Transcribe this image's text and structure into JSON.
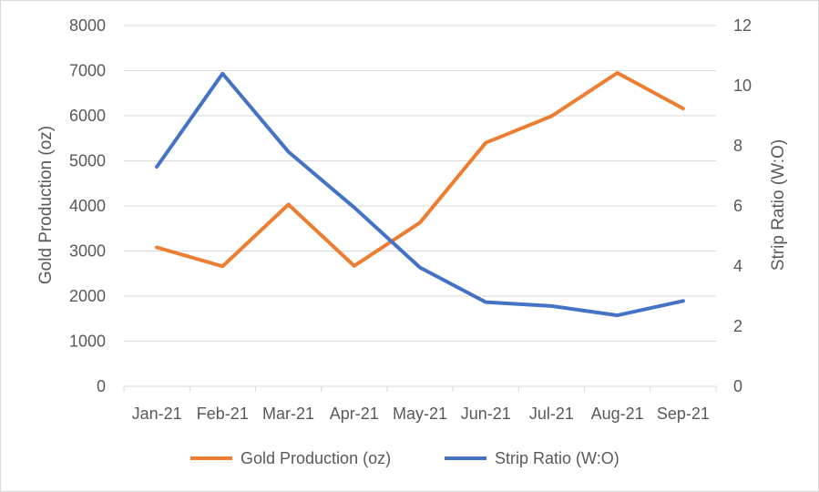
{
  "chart_data": {
    "type": "line",
    "title": "",
    "categories": [
      "Jan-21",
      "Feb-21",
      "Mar-21",
      "Apr-21",
      "May-21",
      "Jun-21",
      "Jul-21",
      "Aug-21",
      "Sep-21"
    ],
    "ylabel_left": "Gold Production (oz)",
    "ylabel_right": "Strip Ratio (W:O)",
    "ylim_left": [
      0,
      8000
    ],
    "yticks_left": [
      "0",
      "1000",
      "2000",
      "3000",
      "4000",
      "5000",
      "6000",
      "7000",
      "8000"
    ],
    "ylim_right": [
      0,
      12
    ],
    "yticks_right": [
      "0",
      "2",
      "4",
      "6",
      "8",
      "10",
      "12"
    ],
    "grid": true,
    "legend_position": "bottom",
    "series": [
      {
        "name": "Gold Production (oz)",
        "axis": "left",
        "color": "#ED7D31",
        "values": [
          3080,
          2660,
          4030,
          2670,
          3630,
          5400,
          5990,
          6950,
          6160
        ]
      },
      {
        "name": "Strip Ratio (W:O)",
        "axis": "right",
        "color": "#4472C4",
        "values": [
          7.3,
          10.4,
          7.8,
          5.95,
          3.95,
          2.8,
          2.67,
          2.36,
          2.84
        ]
      }
    ]
  }
}
